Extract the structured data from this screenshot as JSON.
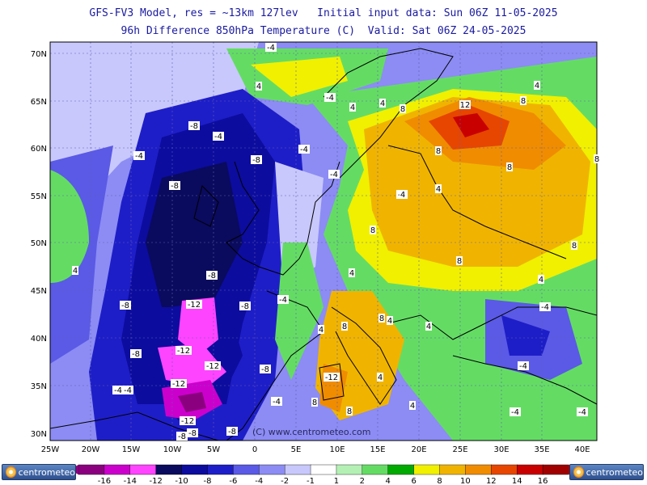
{
  "title_line1": "GFS-FV3 Model, res = ~13km 127lev   Initial input data: Sun 06Z 11-05-2025",
  "title_line2": "96h Difference 850hPa Temperature (C)  Valid: Sat 06Z 24-05-2025",
  "copyright": "(C) www.centrometeo.com",
  "logo_text": "centrometeo",
  "lat_labels": [
    "70N",
    "65N",
    "60N",
    "55N",
    "50N",
    "45N",
    "40N",
    "35N",
    "30N"
  ],
  "lon_labels": [
    "25W",
    "20W",
    "15W",
    "10W",
    "5W",
    "0",
    "5E",
    "10E",
    "15E",
    "20E",
    "25E",
    "30E",
    "35E",
    "40E"
  ],
  "contour_labels": [
    "-4",
    "-4",
    "-4",
    "-4",
    "-4",
    "-4",
    "-4",
    "-4",
    "-4",
    "-4",
    "-4",
    "-4",
    "-4",
    "-4",
    "-4",
    "4",
    "4",
    "4",
    "4",
    "4",
    "4",
    "4",
    "4",
    "4",
    "4",
    "4",
    "4",
    "4",
    "4",
    "-8",
    "-8",
    "-8",
    "-8",
    "-8",
    "-8",
    "-8",
    "-8",
    "-8",
    "-8",
    "-8",
    "-12",
    "-12",
    "-12",
    "-12",
    "-12",
    "-12",
    "8",
    "8",
    "8",
    "8",
    "8",
    "8",
    "8",
    "8",
    "8",
    "8",
    "8",
    "8",
    "12"
  ],
  "colorbar": {
    "labels": [
      "-16",
      "-14",
      "-12",
      "-10",
      "-8",
      "-6",
      "-4",
      "-2",
      "-1",
      "1",
      "2",
      "4",
      "6",
      "8",
      "10",
      "12",
      "14",
      "16"
    ],
    "colors": [
      "#8b007f",
      "#cc00cc",
      "#ff44ff",
      "#0a0a5e",
      "#0c0c9e",
      "#1e1ec8",
      "#5a5ae6",
      "#8c8cf4",
      "#c8c8fc",
      "#ffffff",
      "#b4f0b4",
      "#64dc64",
      "#00aa00",
      "#f0f000",
      "#f0b400",
      "#f08c00",
      "#e64600",
      "#c80000",
      "#a00000"
    ],
    "field_colors": {
      "background_neutral": "#e6e6ff",
      "ocean_neutral": "#d2d2ff",
      "cold_extreme": "#ff44ff"
    }
  }
}
